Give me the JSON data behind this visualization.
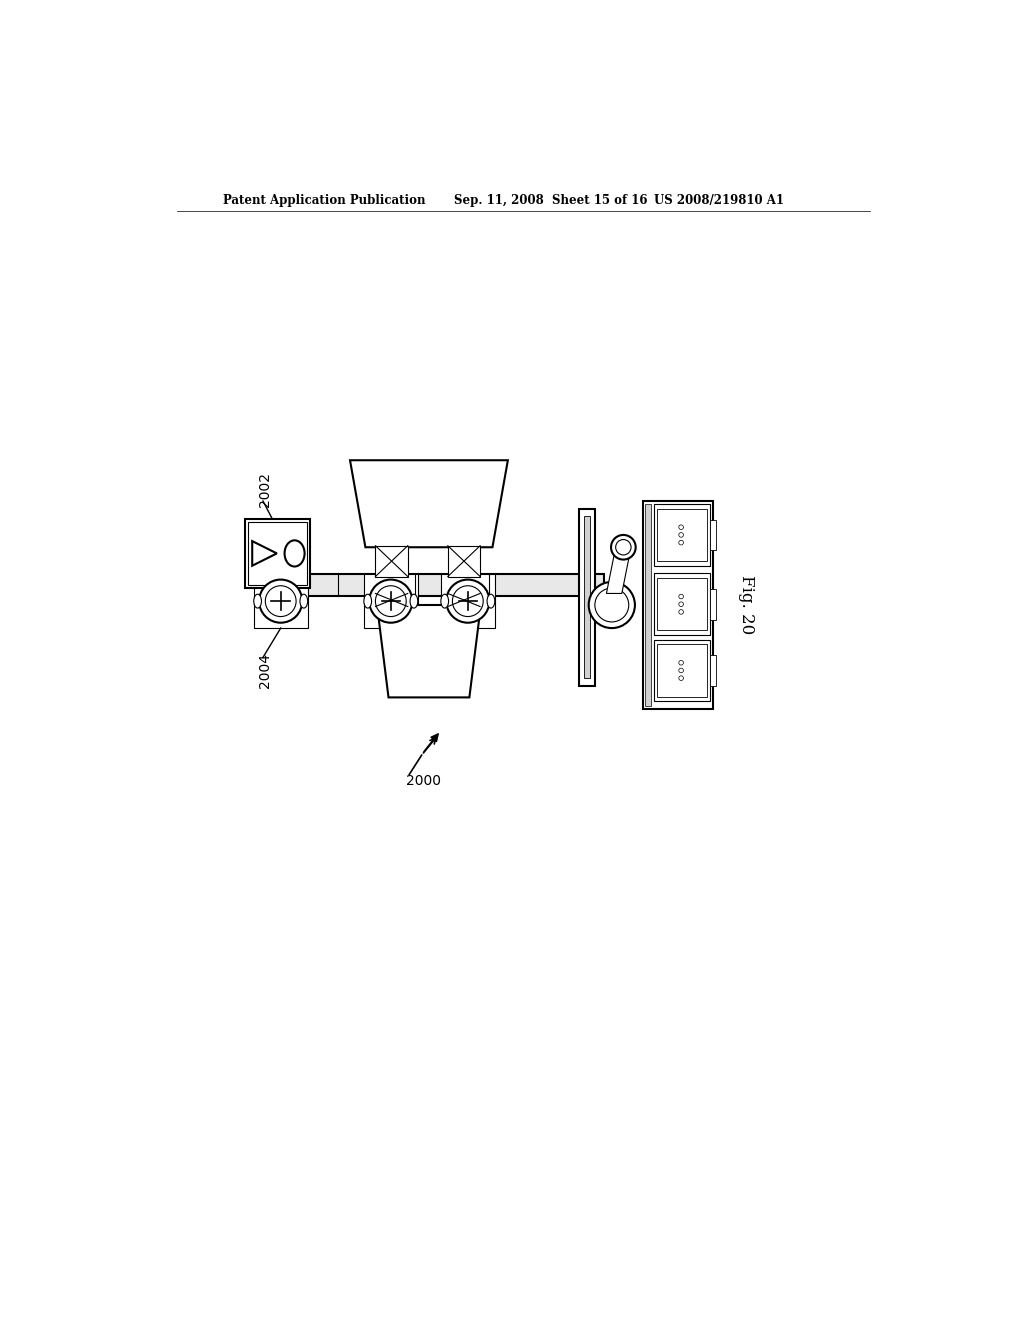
{
  "background_color": "#ffffff",
  "header_left": "Patent Application Publication",
  "header_mid": "Sep. 11, 2008  Sheet 15 of 16",
  "header_right": "US 2008/219810 A1",
  "fig_label": "Fig. 20",
  "label_2000": "2000",
  "label_2002": "2002",
  "label_2004": "2004",
  "line_color": "#000000",
  "lw": 1.5
}
